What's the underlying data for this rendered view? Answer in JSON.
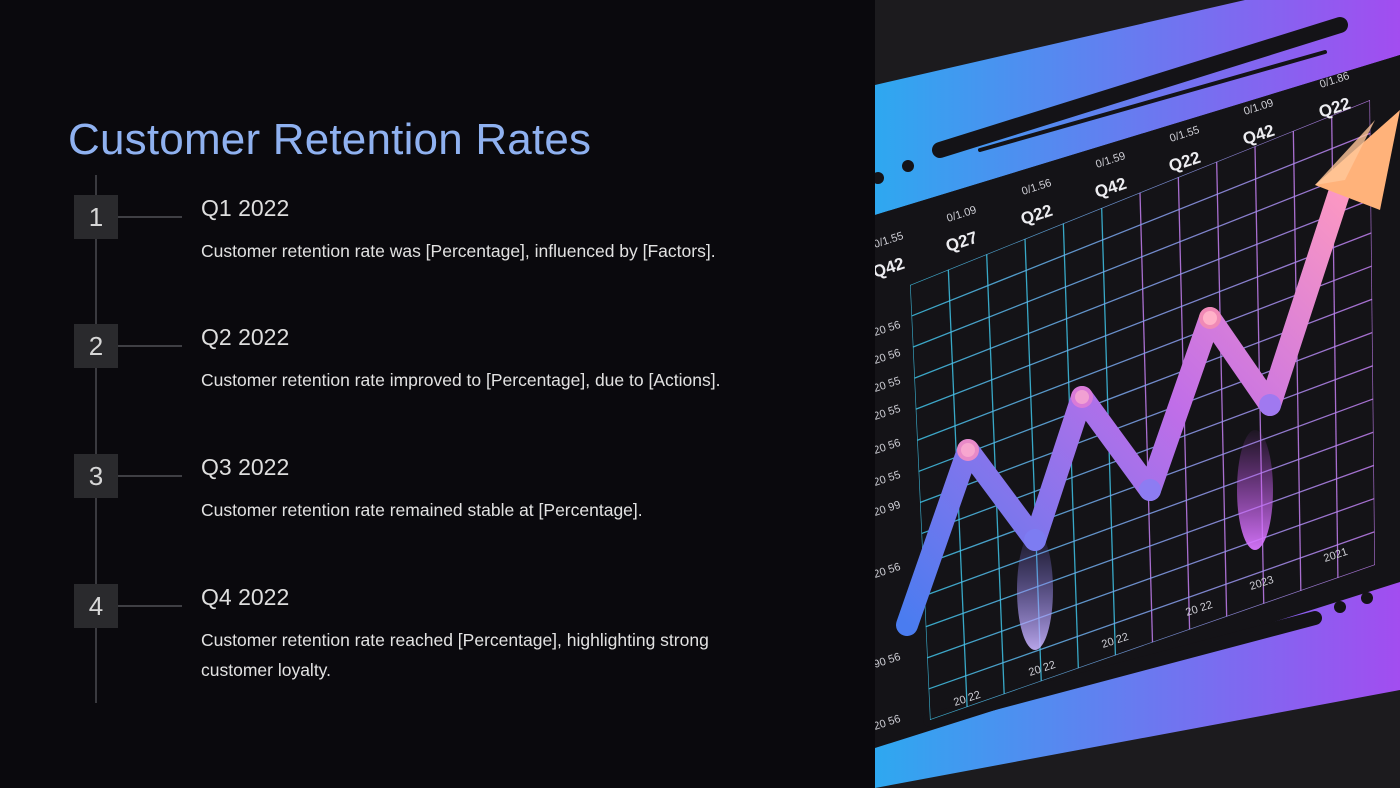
{
  "slide": {
    "title": "Customer Retention Rates"
  },
  "timeline": [
    {
      "number": "1",
      "quarter": "Q1 2022",
      "description": "Customer retention rate was [Percentage], influenced by [Factors]."
    },
    {
      "number": "2",
      "quarter": "Q2 2022",
      "description": "Customer retention rate improved to [Percentage], due to [Actions]."
    },
    {
      "number": "3",
      "quarter": "Q3 2022",
      "description": "Customer retention rate remained stable at [Percentage]."
    },
    {
      "number": "4",
      "quarter": "Q4 2022",
      "description": "Customer retention rate reached [Percentage], highlighting strong customer loyalty."
    }
  ],
  "illustration": {
    "top_quarter_labels": [
      "Q42",
      "Q27",
      "Q22",
      "Q42",
      "Q22",
      "Q42",
      "Q22"
    ],
    "top_value_labels": [
      "0/1.55",
      "0/1.09",
      "0/1.56",
      "0/1.59",
      "0/1.55",
      "0/1.09",
      "0/1.86"
    ],
    "left_axis_labels": [
      "20 56",
      "20 56",
      "20 55",
      "20 55",
      "20 56",
      "20 55",
      "20 99",
      "20 56",
      "90 56",
      "20 56"
    ],
    "bottom_axis_labels": [
      "20 22",
      "20 22",
      "20 22",
      "20 22",
      "2023",
      "2021"
    ],
    "colors": {
      "gradient_start": "#2ea8f0",
      "gradient_end": "#a24df0",
      "arrow_tip": "#ffb27a",
      "grid_cool": "#3fc3e6",
      "grid_warm": "#c27ff0"
    }
  }
}
